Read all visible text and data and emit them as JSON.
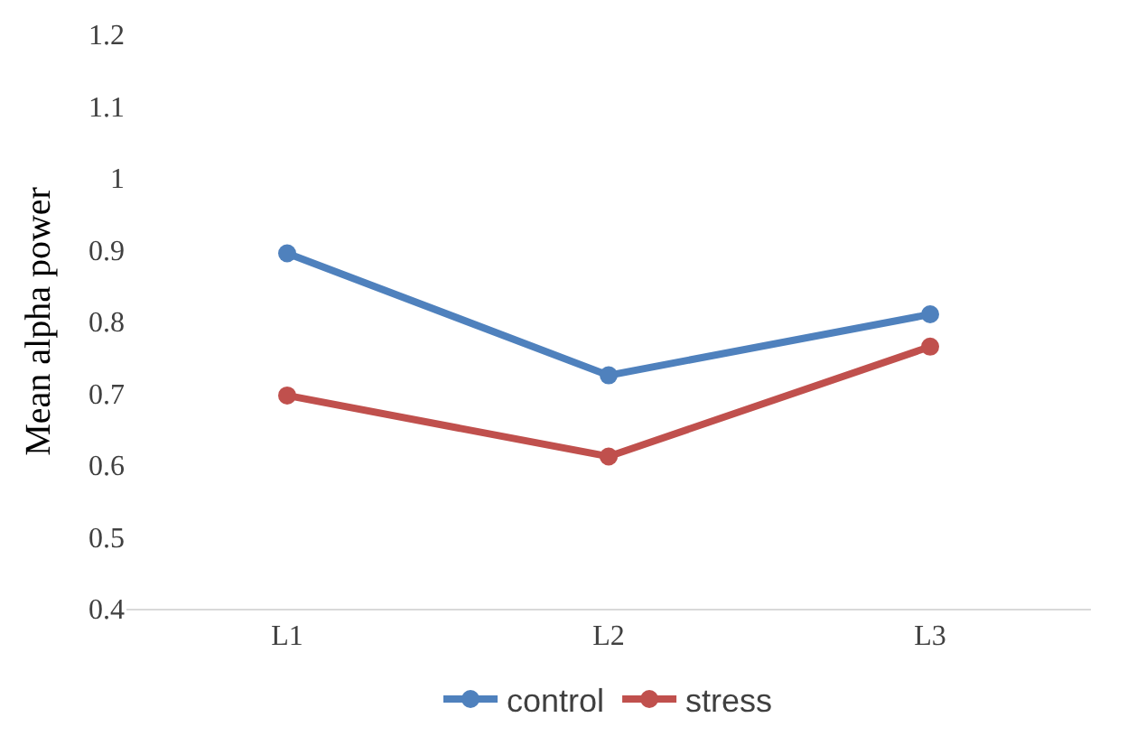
{
  "chart_data": {
    "type": "line",
    "ylabel": "Mean alpha power",
    "categories": [
      "L1",
      "L2",
      "L3"
    ],
    "series": [
      {
        "name": "control",
        "color": "#4f81bd",
        "values": [
          0.895,
          0.725,
          0.81
        ]
      },
      {
        "name": "stress",
        "color": "#c0504d",
        "values": [
          0.697,
          0.612,
          0.765
        ]
      }
    ],
    "ylim": [
      0.4,
      1.2
    ],
    "yticks": [
      0.4,
      0.5,
      0.6,
      0.7,
      0.8,
      0.9,
      1,
      1.1,
      1.2
    ],
    "grid": false,
    "legend": "bottom",
    "marker": "circle",
    "line_style": "solid"
  }
}
